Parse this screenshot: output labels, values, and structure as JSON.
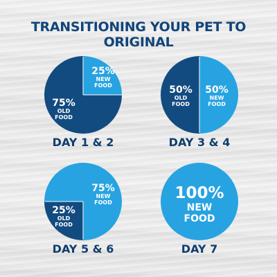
{
  "title": "TRANSITIONING YOUR PET TO ORIGINAL",
  "colors": {
    "dark": "#124b7f",
    "light": "#27a3e1",
    "title": "#11457a",
    "text": "#ffffff",
    "day": "#0f3e6d"
  },
  "chart_data": [
    {
      "type": "pie",
      "title": "DAY 1 & 2",
      "slices": [
        {
          "label": "25%",
          "sub": "NEW",
          "sub2": "FOOD",
          "value": 25,
          "color": "#27a3e1"
        },
        {
          "label": "75%",
          "sub": "OLD",
          "sub2": "FOOD",
          "value": 75,
          "color": "#124b7f"
        }
      ]
    },
    {
      "type": "pie",
      "title": "DAY 3 & 4",
      "slices": [
        {
          "label": "50%",
          "sub": "OLD",
          "sub2": "FOOD",
          "value": 50,
          "color": "#124b7f"
        },
        {
          "label": "50%",
          "sub": "NEW",
          "sub2": "FOOD",
          "value": 50,
          "color": "#27a3e1"
        }
      ]
    },
    {
      "type": "pie",
      "title": "DAY 5 & 6",
      "slices": [
        {
          "label": "75%",
          "sub": "NEW",
          "sub2": "FOOD",
          "value": 75,
          "color": "#27a3e1"
        },
        {
          "label": "25%",
          "sub": "OLD",
          "sub2": "FOOD",
          "value": 25,
          "color": "#124b7f"
        }
      ]
    },
    {
      "type": "pie",
      "title": "DAY 7",
      "slices": [
        {
          "label": "100%",
          "sub": "NEW",
          "sub2": "FOOD",
          "value": 100,
          "color": "#27a3e1"
        }
      ]
    }
  ]
}
